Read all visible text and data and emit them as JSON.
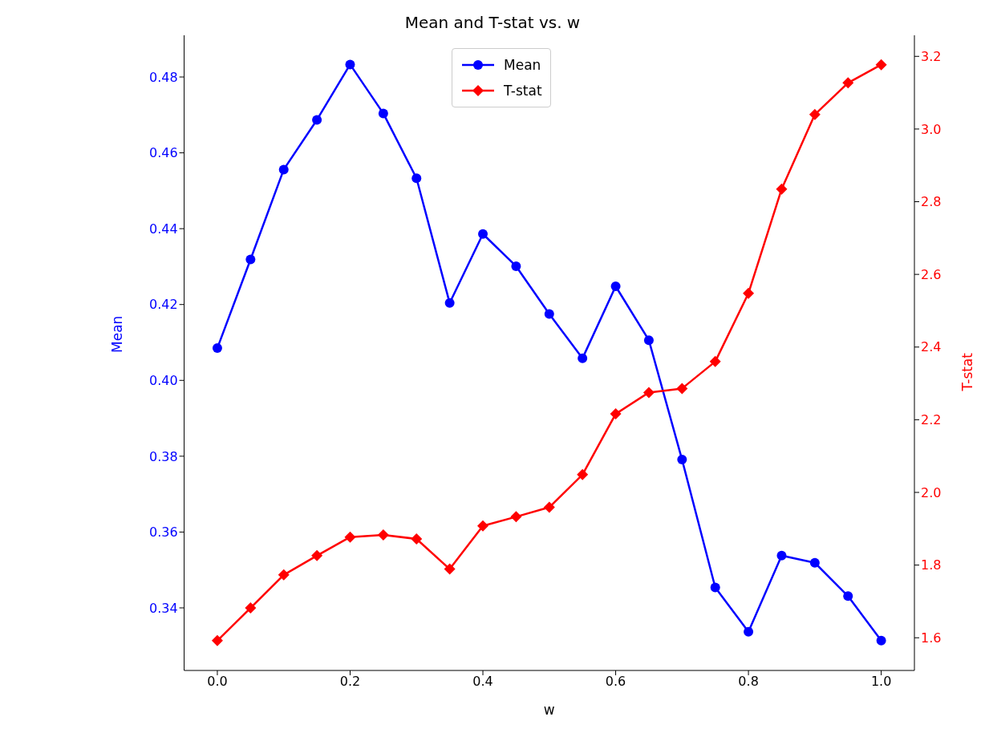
{
  "chart_data": {
    "type": "line",
    "title": "Mean and T-stat vs. w",
    "xlabel": "w",
    "ylabel": "Mean",
    "y2label": "T-stat",
    "x": [
      0.0,
      0.05,
      0.1,
      0.15,
      0.2,
      0.25,
      0.3,
      0.35,
      0.4,
      0.45,
      0.5,
      0.55,
      0.6,
      0.65,
      0.7,
      0.75,
      0.8,
      0.85,
      0.9,
      0.95,
      1.0
    ],
    "series": [
      {
        "name": "Mean",
        "color": "#0000ff",
        "marker": "circle",
        "values": [
          0.4085,
          0.4319,
          0.4556,
          0.4687,
          0.4833,
          0.4704,
          0.4533,
          0.4204,
          0.4386,
          0.4301,
          0.4175,
          0.4058,
          0.4248,
          0.4106,
          0.3791,
          0.3454,
          0.3337,
          0.3538,
          0.3519,
          0.3431,
          0.3314
        ]
      },
      {
        "name": "T-stat",
        "color": "#ff0000",
        "marker": "diamond",
        "axis": "y2",
        "values": [
          1.592,
          1.682,
          1.773,
          1.826,
          1.877,
          1.883,
          1.872,
          1.789,
          1.908,
          1.933,
          1.959,
          2.049,
          2.216,
          2.275,
          2.286,
          2.36,
          2.548,
          2.835,
          3.04,
          3.127,
          3.177
        ]
      }
    ],
    "xlim": [
      -0.05,
      1.05
    ],
    "xticks": [
      {
        "value": 0,
        "label": "0.0"
      },
      0.2,
      0.4,
      0.6,
      0.8,
      {
        "value": 1,
        "label": "1.0"
      }
    ],
    "ylim": [
      0.3235,
      0.491
    ],
    "yticks": [
      0.34,
      0.36,
      0.38,
      {
        "value": 0.4,
        "label": "0.40"
      },
      0.42,
      0.44,
      0.46,
      0.48
    ],
    "y2lim": [
      1.51,
      3.258
    ],
    "y2ticks": [
      1.6,
      1.8,
      {
        "value": 2,
        "label": "2.0"
      },
      2.2,
      2.4,
      2.6,
      2.8,
      {
        "value": 3,
        "label": "3.0"
      },
      3.2
    ],
    "legend": "top",
    "line_style": "solid"
  }
}
